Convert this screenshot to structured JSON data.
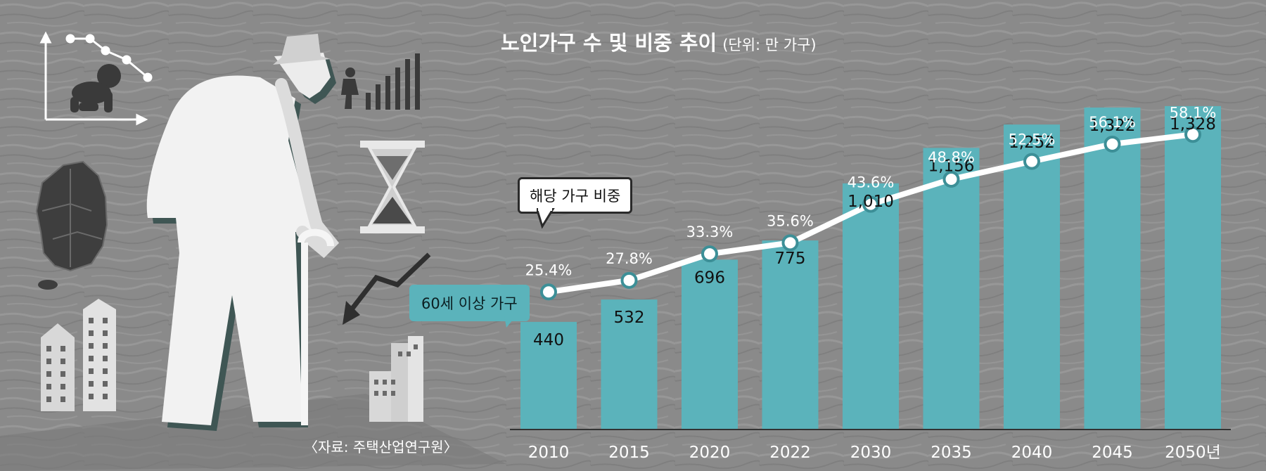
{
  "title": "노인가구 수 및 비중 추이",
  "unit_note": "(단위: 만 가구)",
  "legend": {
    "line_label": "해당 가구 비중",
    "bar_label": "60세 이상 가구"
  },
  "source": "〈자료: 주택산업연구원〉",
  "colors": {
    "background": "#8a8a8a",
    "bar": "#5bb3bb",
    "line": "#ffffff",
    "marker_stroke": "#3c8f97",
    "text_light": "#ffffff",
    "text_dark": "#111111"
  },
  "illustration": {
    "icons": [
      "declining-line-chart-icon",
      "crawling-baby-icon",
      "korea-map-icon",
      "elderly-man-with-cane-icon",
      "rising-bar-chart-icon",
      "hourglass-icon",
      "down-arrow-icon",
      "apartment-buildings-icon"
    ]
  },
  "chart_data": {
    "type": "bar",
    "categories": [
      "2010",
      "2015",
      "2020",
      "2022",
      "2030",
      "2035",
      "2040",
      "2045",
      "2050년"
    ],
    "category_labels": [
      "2010",
      "2015",
      "2020",
      "2022",
      "2030",
      "2035",
      "2040",
      "2045",
      "2050년"
    ],
    "series": [
      {
        "name": "60세 이상 가구",
        "type": "bar",
        "values": [
          440,
          532,
          696,
          775,
          1010,
          1156,
          1252,
          1322,
          1328
        ],
        "labels": [
          "440",
          "532",
          "696",
          "775",
          "1,010",
          "1,156",
          "1,252",
          "1,322",
          "1,328"
        ]
      },
      {
        "name": "해당 가구 비중",
        "type": "line",
        "values": [
          25.4,
          27.8,
          33.3,
          35.6,
          43.6,
          48.8,
          52.5,
          56.1,
          58.1
        ],
        "labels": [
          "25.4%",
          "27.8%",
          "33.3%",
          "35.6%",
          "43.6%",
          "48.8%",
          "52.5%",
          "56.1%",
          "58.1%"
        ]
      }
    ],
    "title": "노인가구 수 및 비중 추이",
    "ylabel": "",
    "xlabel": "",
    "grid": false
  }
}
